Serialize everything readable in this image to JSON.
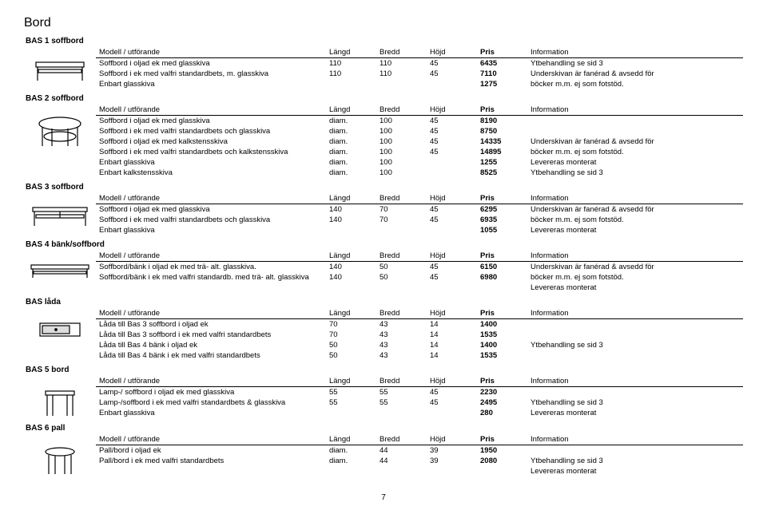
{
  "page_title": "Bord",
  "page_number": "7",
  "columns": {
    "model": "Modell / utförande",
    "length": "Längd",
    "width": "Bredd",
    "height": "Höjd",
    "price": "Pris",
    "info": "Information"
  },
  "sections": [
    {
      "title": "BAS 1 soffbord",
      "rows": [
        {
          "model": "Soffbord i oljad ek med glasskiva",
          "l": "110",
          "w": "110",
          "h": "45",
          "p": "6435",
          "info": "Ytbehandling se sid 3"
        },
        {
          "model": "Soffbord i ek med valfri standardbets, m. glasskiva",
          "l": "110",
          "w": "110",
          "h": "45",
          "p": "7110",
          "info": "Underskivan är fanérad & avsedd för"
        },
        {
          "model": "Enbart glasskiva",
          "l": "",
          "w": "",
          "h": "",
          "p": "1275",
          "info": "böcker m.m. ej som fotstöd."
        }
      ]
    },
    {
      "title": "BAS 2 soffbord",
      "rows": [
        {
          "model": "Soffbord i oljad ek med glasskiva",
          "l": "diam.",
          "w": "100",
          "h": "45",
          "p": "8190",
          "info": ""
        },
        {
          "model": "Soffbord i ek med valfri standardbets och glasskiva",
          "l": "diam.",
          "w": "100",
          "h": "45",
          "p": "8750",
          "info": ""
        },
        {
          "model": "Soffbord i oljad ek med kalkstensskiva",
          "l": "diam.",
          "w": "100",
          "h": "45",
          "p": "14335",
          "info": "Underskivan är fanérad & avsedd för"
        },
        {
          "model": "Soffbord i ek med valfri standardbets och kalkstensskiva",
          "l": "diam.",
          "w": "100",
          "h": "45",
          "p": "14895",
          "info": "böcker m.m. ej som fotstöd."
        },
        {
          "model": "Enbart glasskiva",
          "l": "diam.",
          "w": "100",
          "h": "",
          "p": "1255",
          "info": "Levereras monterat"
        },
        {
          "model": "Enbart kalkstensskiva",
          "l": "diam.",
          "w": "100",
          "h": "",
          "p": "8525",
          "info": "Ytbehandling se sid 3"
        }
      ]
    },
    {
      "title": "BAS 3 soffbord",
      "rows": [
        {
          "model": "Soffbord i oljad ek med glasskiva",
          "l": "140",
          "w": "70",
          "h": "45",
          "p": "6295",
          "info": "Underskivan är fanérad & avsedd för"
        },
        {
          "model": "Soffbord i ek med valfri standardbets och glasskiva",
          "l": "140",
          "w": "70",
          "h": "45",
          "p": "6935",
          "info": "böcker m.m. ej som fotstöd."
        },
        {
          "model": "Enbart glasskiva",
          "l": "",
          "w": "",
          "h": "",
          "p": "1055",
          "info": "Levereras monterat"
        }
      ]
    },
    {
      "title": "BAS 4 bänk/soffbord",
      "rows": [
        {
          "model": "Soffbord/bänk i oljad ek med trä- alt. glasskiva.",
          "l": "140",
          "w": "50",
          "h": "45",
          "p": "6150",
          "info": "Underskivan är fanérad & avsedd för"
        },
        {
          "model": "Soffbord/bänk i ek med valfri standardb. med trä- alt. glasskiva",
          "l": "140",
          "w": "50",
          "h": "45",
          "p": "6980",
          "info": "böcker m.m. ej som fotstöd."
        },
        {
          "model": "",
          "l": "",
          "w": "",
          "h": "",
          "p": "",
          "info": "Levereras monterat"
        }
      ]
    },
    {
      "title": "BAS låda",
      "rows": [
        {
          "model": "Låda till Bas 3 soffbord i oljad ek",
          "l": "70",
          "w": "43",
          "h": "14",
          "p": "1400",
          "info": ""
        },
        {
          "model": "Låda till Bas 3 soffbord i ek med valfri standardbets",
          "l": "70",
          "w": "43",
          "h": "14",
          "p": "1535",
          "info": ""
        },
        {
          "model": "Låda till Bas 4 bänk i oljad ek",
          "l": "50",
          "w": "43",
          "h": "14",
          "p": "1400",
          "info": "Ytbehandling se sid 3"
        },
        {
          "model": "Låda till Bas 4 bänk i ek med valfri standardbets",
          "l": "50",
          "w": "43",
          "h": "14",
          "p": "1535",
          "info": ""
        }
      ]
    },
    {
      "title": "BAS 5 bord",
      "rows": [
        {
          "model": "Lamp-/ soffbord i oljad ek med glasskiva",
          "l": "55",
          "w": "55",
          "h": "45",
          "p": "2230",
          "info": ""
        },
        {
          "model": "Lamp-/soffbord i ek med valfri standardbets & glasskiva",
          "l": "55",
          "w": "55",
          "h": "45",
          "p": "2495",
          "info": "Ytbehandling se sid 3"
        },
        {
          "model": "Enbart glasskiva",
          "l": "",
          "w": "",
          "h": "",
          "p": "280",
          "info": "Levereras monterat"
        }
      ]
    },
    {
      "title": "BAS 6 pall",
      "rows": [
        {
          "model": "Pall/bord i oljad ek",
          "l": "diam.",
          "w": "44",
          "h": "39",
          "p": "1950",
          "info": ""
        },
        {
          "model": "Pall/bord i ek med valfri standardbets",
          "l": "diam.",
          "w": "44",
          "h": "39",
          "p": "2080",
          "info": "Ytbehandling se sid 3"
        },
        {
          "model": "",
          "l": "",
          "w": "",
          "h": "",
          "p": "",
          "info": "Levereras monterat"
        }
      ]
    }
  ]
}
